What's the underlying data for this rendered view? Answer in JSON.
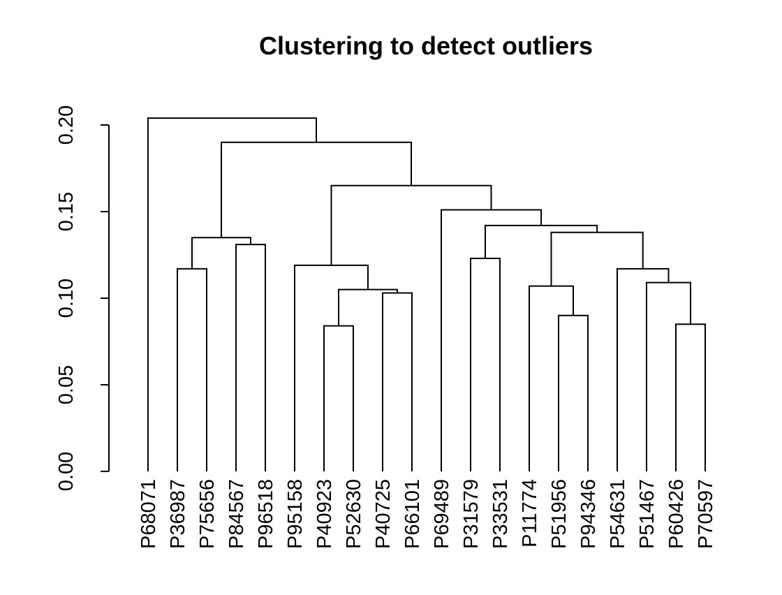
{
  "chart_data": {
    "type": "dendrogram",
    "title": "Clustering to detect outliers",
    "ylabel": "",
    "xlabel": "",
    "ylim": [
      0,
      0.2
    ],
    "yticks": [
      {
        "value": 0.0,
        "label": "0.00"
      },
      {
        "value": 0.05,
        "label": "0.05"
      },
      {
        "value": 0.1,
        "label": "0.10"
      },
      {
        "value": 0.15,
        "label": "0.15"
      },
      {
        "value": 0.2,
        "label": "0.20"
      }
    ],
    "leaves": [
      "P68071",
      "P36987",
      "P75656",
      "P84567",
      "P96518",
      "P95158",
      "P40923",
      "P52630",
      "P40725",
      "P66101",
      "P69489",
      "P31579",
      "P33531",
      "P11774",
      "P51956",
      "P94346",
      "P54631",
      "P51467",
      "P60426",
      "P70597"
    ],
    "merges": [
      {
        "id": "m1",
        "children": [
          "P36987",
          "P75656"
        ],
        "height": 0.117
      },
      {
        "id": "m2",
        "children": [
          "P84567",
          "P96518"
        ],
        "height": 0.131
      },
      {
        "id": "m3",
        "children": [
          "m1",
          "m2"
        ],
        "height": 0.135
      },
      {
        "id": "m4",
        "children": [
          "P40923",
          "P52630"
        ],
        "height": 0.084
      },
      {
        "id": "m5",
        "children": [
          "P40725",
          "P66101"
        ],
        "height": 0.103
      },
      {
        "id": "m6",
        "children": [
          "m4",
          "m5"
        ],
        "height": 0.105
      },
      {
        "id": "m7",
        "children": [
          "P95158",
          "m6"
        ],
        "height": 0.119
      },
      {
        "id": "m8",
        "children": [
          "P31579",
          "P33531"
        ],
        "height": 0.123
      },
      {
        "id": "m9",
        "children": [
          "P51956",
          "P94346"
        ],
        "height": 0.09
      },
      {
        "id": "m10",
        "children": [
          "P11774",
          "m9"
        ],
        "height": 0.107
      },
      {
        "id": "m11",
        "children": [
          "P60426",
          "P70597"
        ],
        "height": 0.085
      },
      {
        "id": "m12",
        "children": [
          "P51467",
          "m11"
        ],
        "height": 0.109
      },
      {
        "id": "m13",
        "children": [
          "P54631",
          "m12"
        ],
        "height": 0.117
      },
      {
        "id": "m14",
        "children": [
          "m10",
          "m13"
        ],
        "height": 0.138
      },
      {
        "id": "m15",
        "children": [
          "m8",
          "m14"
        ],
        "height": 0.142
      },
      {
        "id": "m16",
        "children": [
          "P69489",
          "m15"
        ],
        "height": 0.151
      },
      {
        "id": "m17",
        "children": [
          "m7",
          "m16"
        ],
        "height": 0.165
      },
      {
        "id": "m18",
        "children": [
          "m3",
          "m17"
        ],
        "height": 0.19
      },
      {
        "id": "m19",
        "children": [
          "P68071",
          "m18"
        ],
        "height": 0.204
      }
    ]
  }
}
